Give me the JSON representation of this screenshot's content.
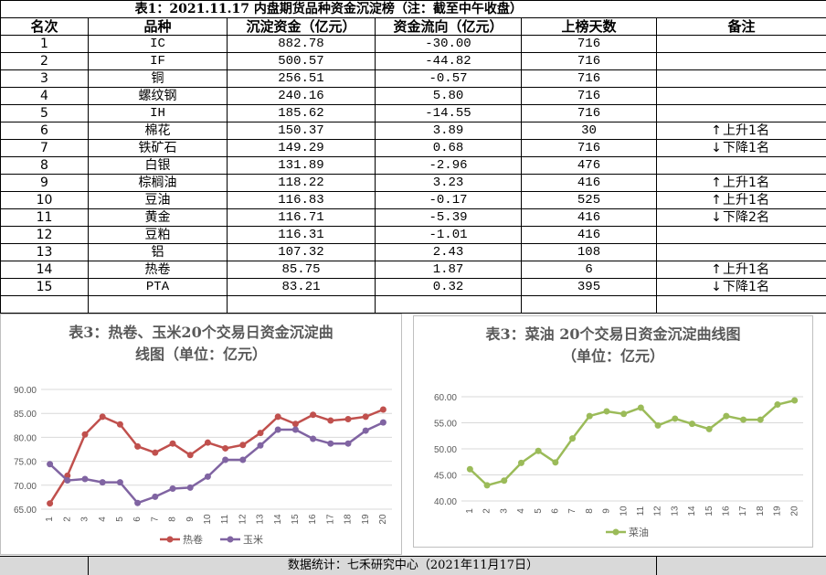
{
  "table": {
    "title": "表1：2021.11.17 内盘期货品种资金沉淀榜（注：截至中午收盘）",
    "headers": [
      "名次",
      "品种",
      "沉淀资金（亿元）",
      "资金流向（亿元）",
      "上榜天数",
      "备注"
    ],
    "rows": [
      {
        "rank": "1",
        "name": "IC",
        "capital": "882.78",
        "flow": "-30.00",
        "days": "716",
        "note": ""
      },
      {
        "rank": "2",
        "name": "IF",
        "capital": "500.57",
        "flow": "-44.82",
        "days": "716",
        "note": ""
      },
      {
        "rank": "3",
        "name": "铜",
        "capital": "256.51",
        "flow": "-0.57",
        "days": "716",
        "note": ""
      },
      {
        "rank": "4",
        "name": "螺纹钢",
        "capital": "240.16",
        "flow": "5.80",
        "days": "716",
        "note": ""
      },
      {
        "rank": "5",
        "name": "IH",
        "capital": "185.62",
        "flow": "-14.55",
        "days": "716",
        "note": ""
      },
      {
        "rank": "6",
        "name": "棉花",
        "capital": "150.37",
        "flow": "3.89",
        "days": "30",
        "note": "上升1名",
        "dir": "up"
      },
      {
        "rank": "7",
        "name": "铁矿石",
        "capital": "149.29",
        "flow": "0.68",
        "days": "716",
        "note": "下降1名",
        "dir": "down"
      },
      {
        "rank": "8",
        "name": "白银",
        "capital": "131.89",
        "flow": "-2.96",
        "days": "476",
        "note": ""
      },
      {
        "rank": "9",
        "name": "棕榈油",
        "capital": "118.22",
        "flow": "3.23",
        "days": "416",
        "note": "上升1名",
        "dir": "up"
      },
      {
        "rank": "10",
        "name": "豆油",
        "capital": "116.83",
        "flow": "-0.17",
        "days": "525",
        "note": "上升1名",
        "dir": "up"
      },
      {
        "rank": "11",
        "name": "黄金",
        "capital": "116.71",
        "flow": "-5.39",
        "days": "416",
        "note": "下降2名",
        "dir": "down"
      },
      {
        "rank": "12",
        "name": "豆粕",
        "capital": "116.31",
        "flow": "-1.01",
        "days": "416",
        "note": ""
      },
      {
        "rank": "13",
        "name": "铝",
        "capital": "107.32",
        "flow": "2.43",
        "days": "108",
        "note": ""
      },
      {
        "rank": "14",
        "name": "热卷",
        "capital": "85.75",
        "flow": "1.87",
        "days": "6",
        "note": "上升1名",
        "dir": "up"
      },
      {
        "rank": "15",
        "name": "PTA",
        "capital": "83.21",
        "flow": "0.32",
        "days": "395",
        "note": "下降1名",
        "dir": "down"
      }
    ],
    "arrow_up": "↑",
    "arrow_down": "↓"
  },
  "footer": {
    "text": "数据统计：七禾研究中心（2021年11月17日）"
  },
  "chart_data": [
    {
      "type": "line",
      "title": "表3：热卷、玉米20个交易日资金沉淀曲线图（单位：亿元）",
      "title_lines": [
        "表3：热卷、玉米20个交易日资金沉淀曲",
        "线图（单位：亿元）"
      ],
      "x": [
        "1",
        "2",
        "3",
        "4",
        "5",
        "6",
        "7",
        "8",
        "9",
        "10",
        "11",
        "12",
        "13",
        "14",
        "15",
        "16",
        "17",
        "18",
        "19",
        "20"
      ],
      "ylim": [
        65,
        90
      ],
      "yticks": [
        "65.00",
        "70.00",
        "75.00",
        "80.00",
        "85.00",
        "90.00"
      ],
      "grid": true,
      "legend": "bottom",
      "series": [
        {
          "name": "热卷",
          "color": "#c0504d",
          "values": [
            66.2,
            72.0,
            80.6,
            84.3,
            82.7,
            78.1,
            76.8,
            78.7,
            76.3,
            78.9,
            77.7,
            78.4,
            80.9,
            84.3,
            82.8,
            84.7,
            83.5,
            83.8,
            84.3,
            85.8
          ]
        },
        {
          "name": "玉米",
          "color": "#8064a2",
          "values": [
            74.4,
            71.0,
            71.3,
            70.6,
            70.6,
            66.3,
            67.6,
            69.3,
            69.5,
            71.8,
            75.3,
            75.3,
            78.3,
            81.6,
            81.6,
            79.7,
            78.7,
            78.7,
            81.4,
            83.1
          ]
        }
      ]
    },
    {
      "type": "line",
      "title": "表3：菜油 20个交易日资金沉淀曲线图（单位：亿元）",
      "title_lines": [
        "表3：菜油 20个交易日资金沉淀曲线图",
        "（单位：亿元）"
      ],
      "x": [
        "1",
        "2",
        "3",
        "4",
        "5",
        "6",
        "7",
        "8",
        "9",
        "10",
        "11",
        "12",
        "13",
        "14",
        "15",
        "16",
        "17",
        "18",
        "19",
        "20"
      ],
      "ylim": [
        40,
        60
      ],
      "yticks": [
        "40.00",
        "45.00",
        "50.00",
        "55.00",
        "60.00"
      ],
      "grid": true,
      "legend": "bottom",
      "series": [
        {
          "name": "菜油",
          "color": "#9bbb59",
          "values": [
            46.1,
            43.0,
            43.9,
            47.3,
            49.6,
            47.4,
            52.0,
            56.3,
            57.2,
            56.7,
            57.9,
            54.5,
            55.8,
            54.8,
            53.8,
            56.3,
            55.6,
            55.6,
            58.5,
            59.3
          ]
        }
      ]
    }
  ]
}
